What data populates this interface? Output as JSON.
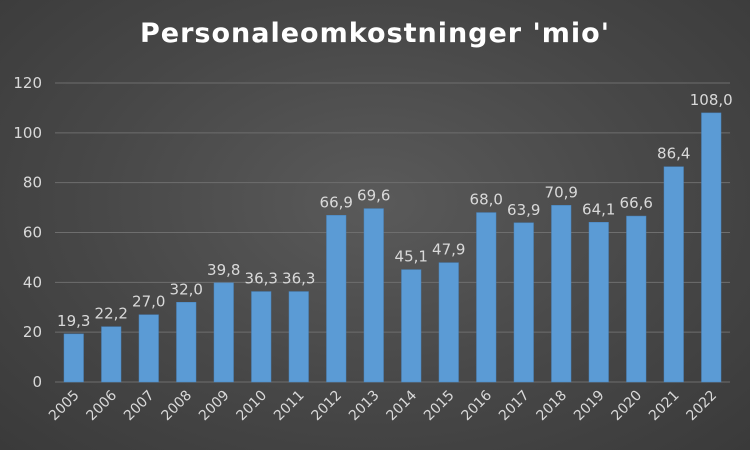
{
  "chart_data": {
    "type": "bar",
    "title": "Personaleomkostninger 'mio'",
    "xlabel": "",
    "ylabel": "",
    "categories": [
      "2005",
      "2006",
      "2007",
      "2008",
      "2009",
      "2010",
      "2011",
      "2012",
      "2013",
      "2014",
      "2015",
      "2016",
      "2017",
      "2018",
      "2019",
      "2020",
      "2021",
      "2022"
    ],
    "values": [
      19.3,
      22.2,
      27.0,
      32.0,
      39.8,
      36.3,
      36.3,
      66.9,
      69.6,
      45.1,
      47.9,
      68.0,
      63.9,
      70.9,
      64.1,
      66.6,
      86.4,
      108.0
    ],
    "value_labels": [
      "19,3",
      "22,2",
      "27,0",
      "32,0",
      "39,8",
      "36,3",
      "36,3",
      "66,9",
      "69,6",
      "45,1",
      "47,9",
      "68,0",
      "63,9",
      "70,9",
      "64,1",
      "66,6",
      "86,4",
      "108,0"
    ],
    "ylim": [
      0,
      120
    ],
    "yticks": [
      0,
      20,
      40,
      60,
      80,
      100,
      120
    ],
    "grid": true,
    "legend": "none",
    "colors": {
      "bar": "#5b9bd5",
      "bar_edge": "#4a86c0",
      "grid": "#6e6e6e",
      "text": "#d9d9d9"
    }
  }
}
